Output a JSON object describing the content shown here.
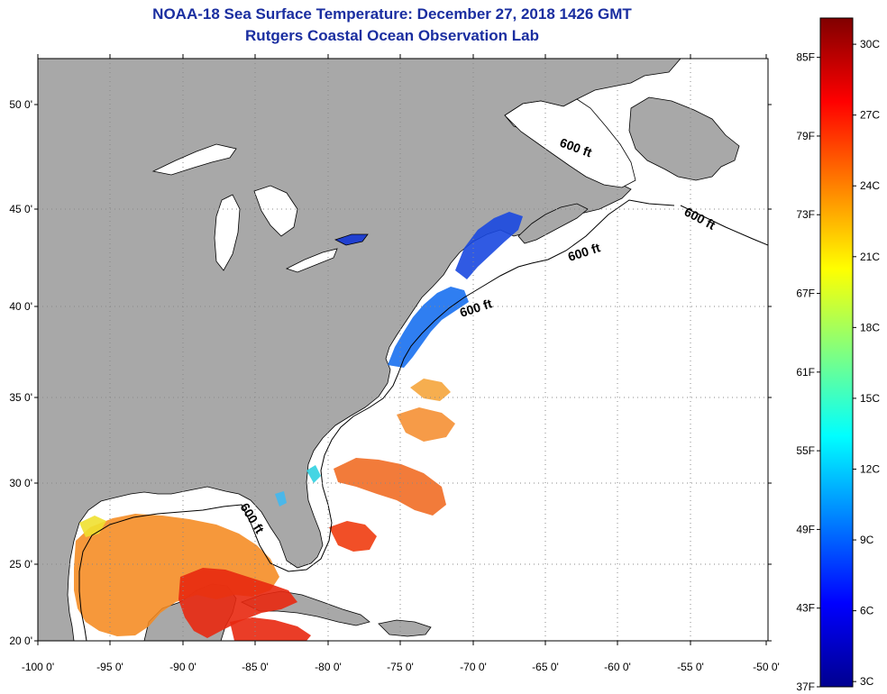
{
  "title": "NOAA-18 Sea Surface Temperature:  December 27, 2018 1426 GMT",
  "subtitle": "Rutgers Coastal Ocean Observation Lab",
  "lat_labels": [
    "50 0'",
    "45 0'",
    "40 0'",
    "35 0'",
    "30 0'",
    "25 0'",
    "20 0'"
  ],
  "lon_labels": [
    "-100 0'",
    "-95 0'",
    "-90 0'",
    "-85 0'",
    "-80 0'",
    "-75 0'",
    "-70 0'",
    "-65 0'",
    "-60 0'",
    "-55 0'",
    "-50 0'"
  ],
  "colorbar": {
    "f_labels": [
      "85F",
      "79F",
      "73F",
      "67F",
      "61F",
      "55F",
      "49F",
      "43F",
      "37F"
    ],
    "c_labels": [
      "30C",
      "27C",
      "24C",
      "21C",
      "18C",
      "15C",
      "12C",
      "9C",
      "6C",
      "3C"
    ],
    "colors": [
      "#00008f",
      "#0000ff",
      "#0080ff",
      "#00ffff",
      "#80ff80",
      "#ffff00",
      "#ff8000",
      "#ff0000",
      "#800000"
    ]
  },
  "depth_contour_labels": [
    "600 ft",
    "600 ft",
    "600 ft",
    "600 ft",
    "600 ft"
  ],
  "colors": {
    "land": "#a8a8a8",
    "lakes": "#ffffff",
    "title_text": "#1a2ea0",
    "grid": "#888888"
  }
}
